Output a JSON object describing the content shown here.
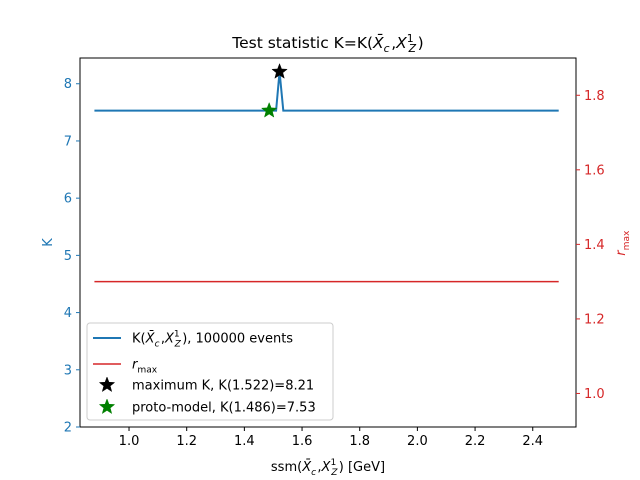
{
  "chart_data": {
    "type": "line",
    "title": "Test statistic K=K(X̄c,X¹Z)",
    "xlabel": "ssm(X̄c,X¹Z) [GeV]",
    "ylabel_left": "K",
    "ylabel_right": "r_max",
    "xlim": [
      0.83,
      2.55
    ],
    "ylim_left": [
      2.0,
      8.45
    ],
    "ylim_right": [
      0.91,
      1.9
    ],
    "x_ticks": [
      1.0,
      1.2,
      1.4,
      1.6,
      1.8,
      2.0,
      2.2,
      2.4
    ],
    "x_tick_labels": [
      "1.0",
      "1.2",
      "1.4",
      "1.6",
      "1.8",
      "2.0",
      "2.2",
      "2.4"
    ],
    "y_left_ticks": [
      2,
      3,
      4,
      5,
      6,
      7,
      8
    ],
    "y_left_tick_labels": [
      "2",
      "3",
      "4",
      "5",
      "6",
      "7",
      "8"
    ],
    "y_right_ticks": [
      1.0,
      1.2,
      1.4,
      1.6,
      1.8
    ],
    "y_right_tick_labels": [
      "1.0",
      "1.2",
      "1.4",
      "1.6",
      "1.8"
    ],
    "series": [
      {
        "name": "K(X̄c,X¹Z), 100000 events",
        "axis": "left",
        "color": "#1f77b4",
        "x": [
          0.88,
          1.51,
          1.522,
          1.535,
          2.49
        ],
        "y": [
          7.53,
          7.53,
          8.21,
          7.53,
          7.53
        ]
      },
      {
        "name": "r_max",
        "axis": "right",
        "color": "#d62728",
        "x": [
          0.88,
          2.49
        ],
        "y": [
          1.3,
          1.3
        ]
      }
    ],
    "markers": [
      {
        "name": "maximum K, K(1.522)=8.21",
        "x": 1.522,
        "y": 8.21,
        "color": "#000000",
        "axis": "left"
      },
      {
        "name": "proto-model, K(1.486)=7.53",
        "x": 1.486,
        "y": 7.53,
        "color": "#008000",
        "axis": "left"
      }
    ],
    "legend": {
      "placement": "lower-left",
      "entries": [
        {
          "label": "K(X̄c,X¹Z), 100000 events",
          "kind": "line",
          "color": "#1f77b4"
        },
        {
          "label": "r_max",
          "kind": "line",
          "color": "#d62728"
        },
        {
          "label": "maximum K, K(1.522)=8.21",
          "kind": "star",
          "color": "#000000"
        },
        {
          "label": "proto-model, K(1.486)=7.53",
          "kind": "star",
          "color": "#008000"
        }
      ]
    },
    "colors": {
      "left_axis": "#1f77b4",
      "right_axis": "#d62728"
    },
    "grid": false
  }
}
